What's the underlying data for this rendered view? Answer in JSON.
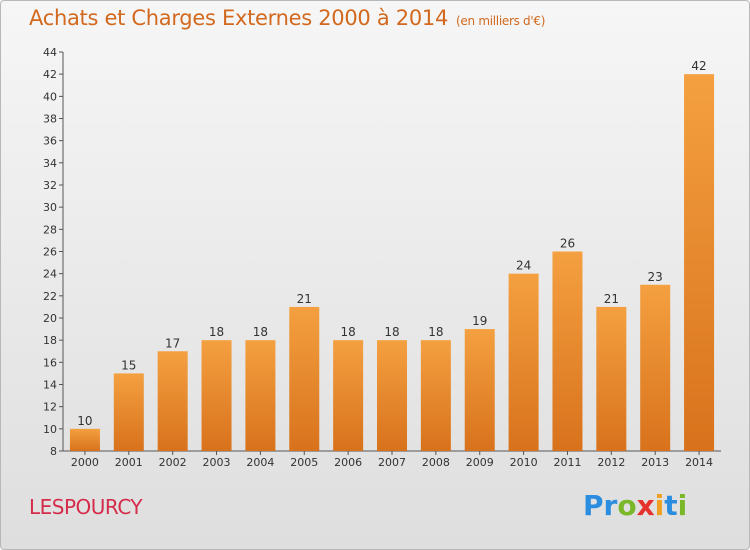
{
  "header": {
    "title": "Achats et Charges Externes 2000 à 2014",
    "subtitle": "(en milliers d'€)"
  },
  "footer": {
    "commune": "LESPOURCY",
    "logo_letters": [
      "P",
      "r",
      "o",
      "x",
      "i",
      "t",
      "i"
    ]
  },
  "colors": {
    "bar_top": "#f4a040",
    "bar_bottom": "#d8721c",
    "title": "#d2691e",
    "commune": "#d42c4a",
    "logo": [
      "#2a8de0",
      "#2a8de0",
      "#7ab82a",
      "#e6322c",
      "#f0a020",
      "#2a8de0",
      "#7ab82a"
    ]
  },
  "chart_data": {
    "type": "bar",
    "categories": [
      "2000",
      "2001",
      "2002",
      "2003",
      "2004",
      "2005",
      "2006",
      "2007",
      "2008",
      "2009",
      "2010",
      "2011",
      "2012",
      "2013",
      "2014"
    ],
    "values": [
      10,
      15,
      17,
      18,
      18,
      21,
      18,
      18,
      18,
      19,
      24,
      26,
      21,
      23,
      42
    ],
    "data_labels": [
      "10",
      "15",
      "17",
      "18",
      "18",
      "21",
      "18",
      "18",
      "18",
      "19",
      "24",
      "26",
      "21",
      "23",
      "42"
    ],
    "yticks": [
      "8",
      "10",
      "12",
      "14",
      "16",
      "18",
      "20",
      "22",
      "24",
      "26",
      "28",
      "30",
      "32",
      "34",
      "36",
      "38",
      "40",
      "42",
      "44"
    ],
    "ylim": [
      8,
      44
    ],
    "grid": false,
    "legend": "none"
  }
}
